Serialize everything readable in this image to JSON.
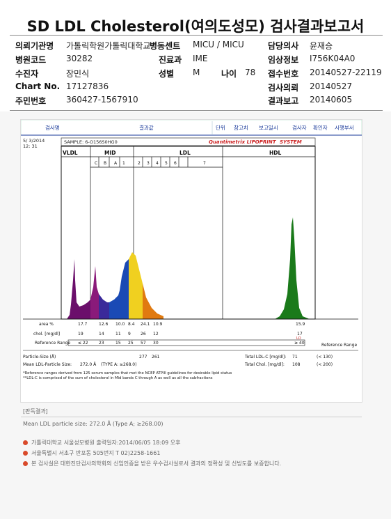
{
  "title": "SD LDL Cholesterol(여의도성모) 검사결과보고서",
  "info": {
    "rows": [
      [
        {
          "l": "의뢰기관명",
          "v": "가톨릭학원가톨릭대학교"
        },
        {
          "l": "병동센트",
          "v": "MICU / MICU"
        },
        {
          "l": "담당의사",
          "v": "윤재승"
        }
      ],
      [
        {
          "l": "병원코드",
          "v": "30282"
        },
        {
          "l": "진료과",
          "v": "IME"
        },
        {
          "l": "임상정보",
          "v": "I756K04A0"
        }
      ],
      [
        {
          "l": "수진자",
          "v": "장민식"
        },
        {
          "l": "성별",
          "v": "M"
        },
        {
          "l": "나이",
          "v": "78"
        },
        {
          "l": "접수번호",
          "v": "20140527-22119"
        }
      ],
      [
        {
          "l": "Chart No.",
          "v": "17127836"
        },
        {
          "l": "검사의뢰",
          "v": "20140527"
        }
      ],
      [
        {
          "l": "주민번호",
          "v": "360427-1567910"
        },
        {
          "l": "결과보고",
          "v": "20140605"
        }
      ]
    ]
  },
  "report": {
    "headers": [
      "검사명",
      "결과값",
      "단위",
      "참고치",
      "보고일시",
      "검사자",
      "확인자",
      "시행부서"
    ],
    "date": "5/ 3/2014",
    "time": "12: 31",
    "sample": "SAMPLE:  6-O156S0HG0",
    "brand": "Quantimetrix LIPOPRINT",
    "brand_suffix": " SYSTEM",
    "bands": {
      "vldl": "VLDL",
      "mid": "MID",
      "ldl": "LDL",
      "hdl": "HDL",
      "mid_sub": [
        "C",
        "B",
        "A"
      ],
      "ldl_sub": [
        "1",
        "2",
        "3",
        "4",
        "5",
        "6",
        "7"
      ]
    },
    "rows": {
      "area_label": "area %",
      "area": [
        "17.7",
        "12.6",
        "10.0",
        "8.4",
        "24.1",
        "10.9"
      ],
      "area_hdl": "15.9",
      "chol_label": "chol. [mg/dl]",
      "chol": [
        "19",
        "14",
        "11",
        "9",
        "26",
        "12"
      ],
      "chol_hdl": "17",
      "chol_hdl_flag": "LO",
      "ref_label": "Reference Range",
      "ref": [
        "≤ 22",
        "23",
        "15",
        "25",
        "57",
        "30"
      ],
      "ref_hdl": "≥ 40",
      "ref_label_right": "Reference Range"
    },
    "particle_size_label": "Particle-Size (Å)",
    "particle_size": [
      "277",
      "261"
    ],
    "mean_ldl_label": "Mean LDL-Particle Size:",
    "mean_ldl_value": "272.0 Å",
    "mean_ldl_type": "(TYPE A: ≥268.0)",
    "total_ldl_label": "Total LDL-C [mg/dl]:",
    "total_ldl_value": "71",
    "total_ldl_ref": "(< 130)",
    "total_chol_label": "Total Chol. [mg/dl]:",
    "total_chol_value": "108",
    "total_chol_ref": "(< 200)",
    "footnote1": "*Reference ranges derived from 125 serum samples that met the NCEP ATPIII guidelines for desirable lipid status",
    "footnote2": "**LDL-C is comprised of the sum of cholesterol in Mid bands C through A as well as all the subfractions"
  },
  "comment": {
    "label": "[판독결과]",
    "text": "Mean LDL particle size: 272.0 Å  (Type A; ≥268.00)"
  },
  "footer": {
    "lines": [
      "가톨릭대학교 서울성모병원        출력일자:2014/06/05 18:09 오후",
      "서울특별시 서초구 반포동 505번지 T 02)2258-1661",
      "본 검사실은 대한진단검사의학회의 신임인증을 받은 우수검사실로서 결과의 정확성 및 신빙도를 보증합니다."
    ]
  },
  "colors": {
    "vldl": "#6b0f6b",
    "c": "#8a1a7a",
    "b": "#3a2a9a",
    "a": "#1a4ab5",
    "l1": "#f0d020",
    "l2": "#e07a10",
    "hdl": "#1a7a1a",
    "header_blue": "#1a3a9a",
    "brand_red": "#cc2222"
  }
}
